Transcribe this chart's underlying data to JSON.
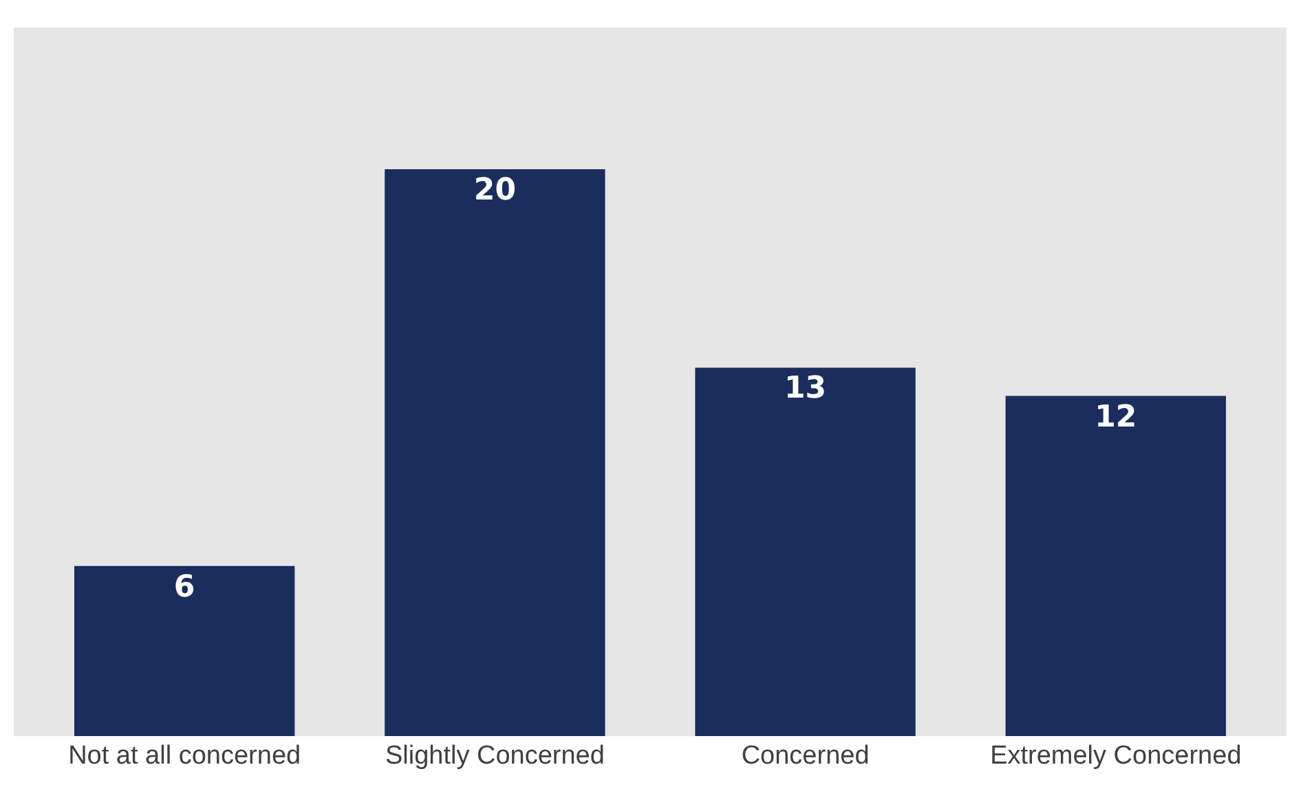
{
  "chart_data": {
    "type": "bar",
    "categories": [
      "Not at all concerned",
      "Slightly Concerned",
      "Concerned",
      "Extremely Concerned"
    ],
    "values": [
      6,
      20,
      13,
      12
    ],
    "color": "#1b2d5c",
    "ylim": [
      0,
      25
    ],
    "data_labels": true,
    "grid": false,
    "legend": false,
    "tick_labels": "x"
  }
}
